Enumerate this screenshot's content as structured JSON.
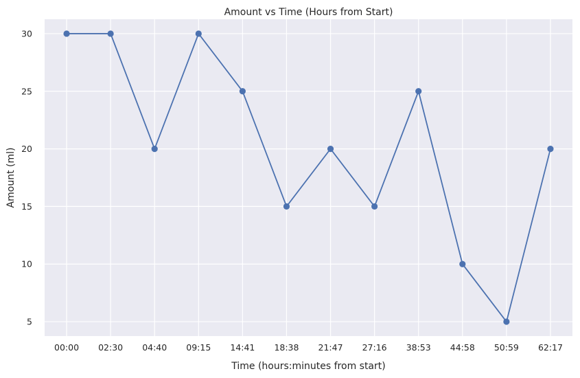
{
  "chart_data": {
    "type": "line",
    "title": "Amount vs Time (Hours from Start)",
    "xlabel": "Time (hours:minutes from start)",
    "ylabel": "Amount (ml)",
    "categories": [
      "00:00",
      "02:30",
      "04:40",
      "09:15",
      "14:41",
      "18:38",
      "21:47",
      "27:16",
      "38:53",
      "44:58",
      "50:59",
      "62:17"
    ],
    "series": [
      {
        "values": [
          30,
          30,
          20,
          30,
          25,
          15,
          20,
          15,
          25,
          10,
          5,
          20
        ]
      }
    ],
    "ylim": [
      3.75,
      31.25
    ],
    "yticks": [
      5,
      10,
      15,
      20,
      25,
      30
    ],
    "grid": true,
    "colors": {
      "background": "#eaeaf2",
      "line": "#4c72b0",
      "grid": "#ffffff",
      "text": "#262626"
    }
  }
}
